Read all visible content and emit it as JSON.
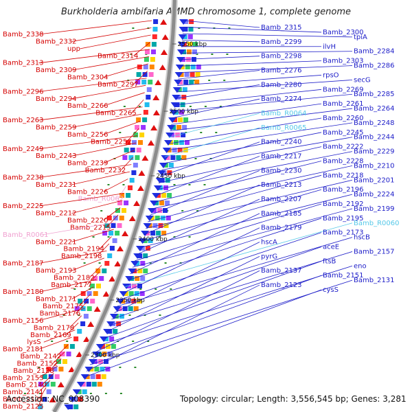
{
  "title": "Burkholderia ambifaria AMMD chromosome 1, complete genome",
  "footer": {
    "accession": "Accession: NC_008390",
    "topology": "Topology: circular; Length: 3,556,545 bp; Genes: 3,281"
  },
  "colors": {
    "background": "#ffffff",
    "backbone": "#8c8c8c",
    "minus_label": "#d40000",
    "plus_label": "#1c1cc8",
    "rna_minus_label": "#f0a0d0",
    "rna_plus_label": "#55c8e8",
    "minus_arrow": "#e01010",
    "plus_arrow": "#1f2fe0",
    "tick": "#2a8a2a"
  },
  "scale_marks": [
    "2550 kbp",
    "2500 kbp",
    "2450 kbp",
    "2400 kbp",
    "2350 kbp",
    "2300 kbp"
  ],
  "minus_labels": [
    {
      "text": "Bamb_2338",
      "kind": "gene"
    },
    {
      "text": "Bamb_2332",
      "kind": "gene"
    },
    {
      "text": "upp",
      "kind": "gene"
    },
    {
      "text": "Bamb_2314",
      "kind": "gene"
    },
    {
      "text": "Bamb_2313",
      "kind": "gene"
    },
    {
      "text": "Bamb_2309",
      "kind": "gene"
    },
    {
      "text": "Bamb_2304",
      "kind": "gene"
    },
    {
      "text": "Bamb_2297",
      "kind": "gene"
    },
    {
      "text": "Bamb_2296",
      "kind": "gene"
    },
    {
      "text": "Bamb_2294",
      "kind": "gene"
    },
    {
      "text": "Bamb_2266",
      "kind": "gene"
    },
    {
      "text": "Bamb_2265",
      "kind": "gene"
    },
    {
      "text": "Bamb_2263",
      "kind": "gene"
    },
    {
      "text": "Bamb_2259",
      "kind": "gene"
    },
    {
      "text": "Bamb_2256",
      "kind": "gene"
    },
    {
      "text": "Bamb_2252",
      "kind": "gene"
    },
    {
      "text": "Bamb_2249",
      "kind": "gene"
    },
    {
      "text": "Bamb_2243",
      "kind": "gene"
    },
    {
      "text": "Bamb_2239",
      "kind": "gene"
    },
    {
      "text": "Bamb_2232",
      "kind": "gene"
    },
    {
      "text": "Bamb_2238",
      "kind": "gene"
    },
    {
      "text": "Bamb_2231",
      "kind": "gene"
    },
    {
      "text": "Bamb_2226",
      "kind": "gene"
    },
    {
      "text": "Bamb_R0062",
      "kind": "rna"
    },
    {
      "text": "Bamb_2225",
      "kind": "gene"
    },
    {
      "text": "Bamb_2212",
      "kind": "gene"
    },
    {
      "text": "Bamb_2220",
      "kind": "gene"
    },
    {
      "text": "Bamb_2215",
      "kind": "gene"
    },
    {
      "text": "Bamb_R0061",
      "kind": "rna"
    },
    {
      "text": "Bamb_2221",
      "kind": "gene"
    },
    {
      "text": "Bamb_2194",
      "kind": "gene"
    },
    {
      "text": "Bamb_2198",
      "kind": "gene"
    },
    {
      "text": "Bamb_2187",
      "kind": "gene"
    },
    {
      "text": "Bamb_2193",
      "kind": "gene"
    },
    {
      "text": "Bamb_2182",
      "kind": "gene"
    },
    {
      "text": "Bamb_2177",
      "kind": "gene"
    },
    {
      "text": "Bamb_2180",
      "kind": "gene"
    },
    {
      "text": "Bamb_2171",
      "kind": "gene"
    },
    {
      "text": "Bamb_2175",
      "kind": "gene"
    },
    {
      "text": "Bamb_2176",
      "kind": "gene"
    },
    {
      "text": "Bamb_2156",
      "kind": "gene"
    },
    {
      "text": "Bamb_2178",
      "kind": "gene"
    },
    {
      "text": "Bamb_2169",
      "kind": "gene"
    },
    {
      "text": "lysS",
      "kind": "gene"
    },
    {
      "text": "Bamb_2181",
      "kind": "gene"
    },
    {
      "text": "Bamb_2142",
      "kind": "gene"
    },
    {
      "text": "Bamb_2152",
      "kind": "gene"
    },
    {
      "text": "Bamb_2128",
      "kind": "gene"
    },
    {
      "text": "Bamb_2153",
      "kind": "gene"
    },
    {
      "text": "Bamb_2140",
      "kind": "gene"
    },
    {
      "text": "Bamb_2141",
      "kind": "gene"
    },
    {
      "text": "Bamb_2121",
      "kind": "gene"
    },
    {
      "text": "Bamb_2125",
      "kind": "gene"
    }
  ],
  "plus_labels": [
    {
      "text": "Bamb_2315",
      "kind": "gene"
    },
    {
      "text": "Bamb_2300",
      "kind": "gene"
    },
    {
      "text": "tpiA",
      "kind": "gene"
    },
    {
      "text": "Bamb_2299",
      "kind": "gene"
    },
    {
      "text": "ilvH",
      "kind": "gene"
    },
    {
      "text": "Bamb_2284",
      "kind": "gene"
    },
    {
      "text": "Bamb_2298",
      "kind": "gene"
    },
    {
      "text": "Bamb_2303",
      "kind": "gene"
    },
    {
      "text": "Bamb_2286",
      "kind": "gene"
    },
    {
      "text": "Bamb_2276",
      "kind": "gene"
    },
    {
      "text": "rpsO",
      "kind": "gene"
    },
    {
      "text": "secG",
      "kind": "gene"
    },
    {
      "text": "Bamb_2280",
      "kind": "gene"
    },
    {
      "text": "Bamb_2269",
      "kind": "gene"
    },
    {
      "text": "Bamb_2285",
      "kind": "gene"
    },
    {
      "text": "Bamb_2274",
      "kind": "gene"
    },
    {
      "text": "Bamb_2261",
      "kind": "gene"
    },
    {
      "text": "Bamb_2264",
      "kind": "gene"
    },
    {
      "text": "Bamb_R0064",
      "kind": "rna"
    },
    {
      "text": "Bamb_2260",
      "kind": "gene"
    },
    {
      "text": "Bamb_2248",
      "kind": "gene"
    },
    {
      "text": "Bamb_R0065",
      "kind": "rna"
    },
    {
      "text": "Bamb_2245",
      "kind": "gene"
    },
    {
      "text": "Bamb_2244",
      "kind": "gene"
    },
    {
      "text": "Bamb_2240",
      "kind": "gene"
    },
    {
      "text": "Bamb_2222",
      "kind": "gene"
    },
    {
      "text": "Bamb_2229",
      "kind": "gene"
    },
    {
      "text": "Bamb_2217",
      "kind": "gene"
    },
    {
      "text": "Bamb_2228",
      "kind": "gene"
    },
    {
      "text": "Bamb_2210",
      "kind": "gene"
    },
    {
      "text": "Bamb_2230",
      "kind": "gene"
    },
    {
      "text": "Bamb_2218",
      "kind": "gene"
    },
    {
      "text": "Bamb_2201",
      "kind": "gene"
    },
    {
      "text": "Bamb_2213",
      "kind": "gene"
    },
    {
      "text": "Bamb_2196",
      "kind": "gene"
    },
    {
      "text": "Bamb_2224",
      "kind": "gene"
    },
    {
      "text": "Bamb_2207",
      "kind": "gene"
    },
    {
      "text": "Bamb_2192",
      "kind": "gene"
    },
    {
      "text": "Bamb_2199",
      "kind": "gene"
    },
    {
      "text": "Bamb_2185",
      "kind": "gene"
    },
    {
      "text": "Bamb_2195",
      "kind": "gene"
    },
    {
      "text": "Bamb_R0060",
      "kind": "rna"
    },
    {
      "text": "Bamb_2179",
      "kind": "gene"
    },
    {
      "text": "Bamb_2173",
      "kind": "gene"
    },
    {
      "text": "hscB",
      "kind": "gene"
    },
    {
      "text": "hscA",
      "kind": "gene"
    },
    {
      "text": "aceE",
      "kind": "gene"
    },
    {
      "text": "Bamb_2157",
      "kind": "gene"
    },
    {
      "text": "pyrG",
      "kind": "gene"
    },
    {
      "text": "ftsB",
      "kind": "gene"
    },
    {
      "text": "eno",
      "kind": "gene"
    },
    {
      "text": "Bamb_2137",
      "kind": "gene"
    },
    {
      "text": "Bamb_2151",
      "kind": "gene"
    },
    {
      "text": "Bamb_2131",
      "kind": "gene"
    },
    {
      "text": "Bamb_2123",
      "kind": "gene"
    },
    {
      "text": "cysS",
      "kind": "gene"
    }
  ]
}
